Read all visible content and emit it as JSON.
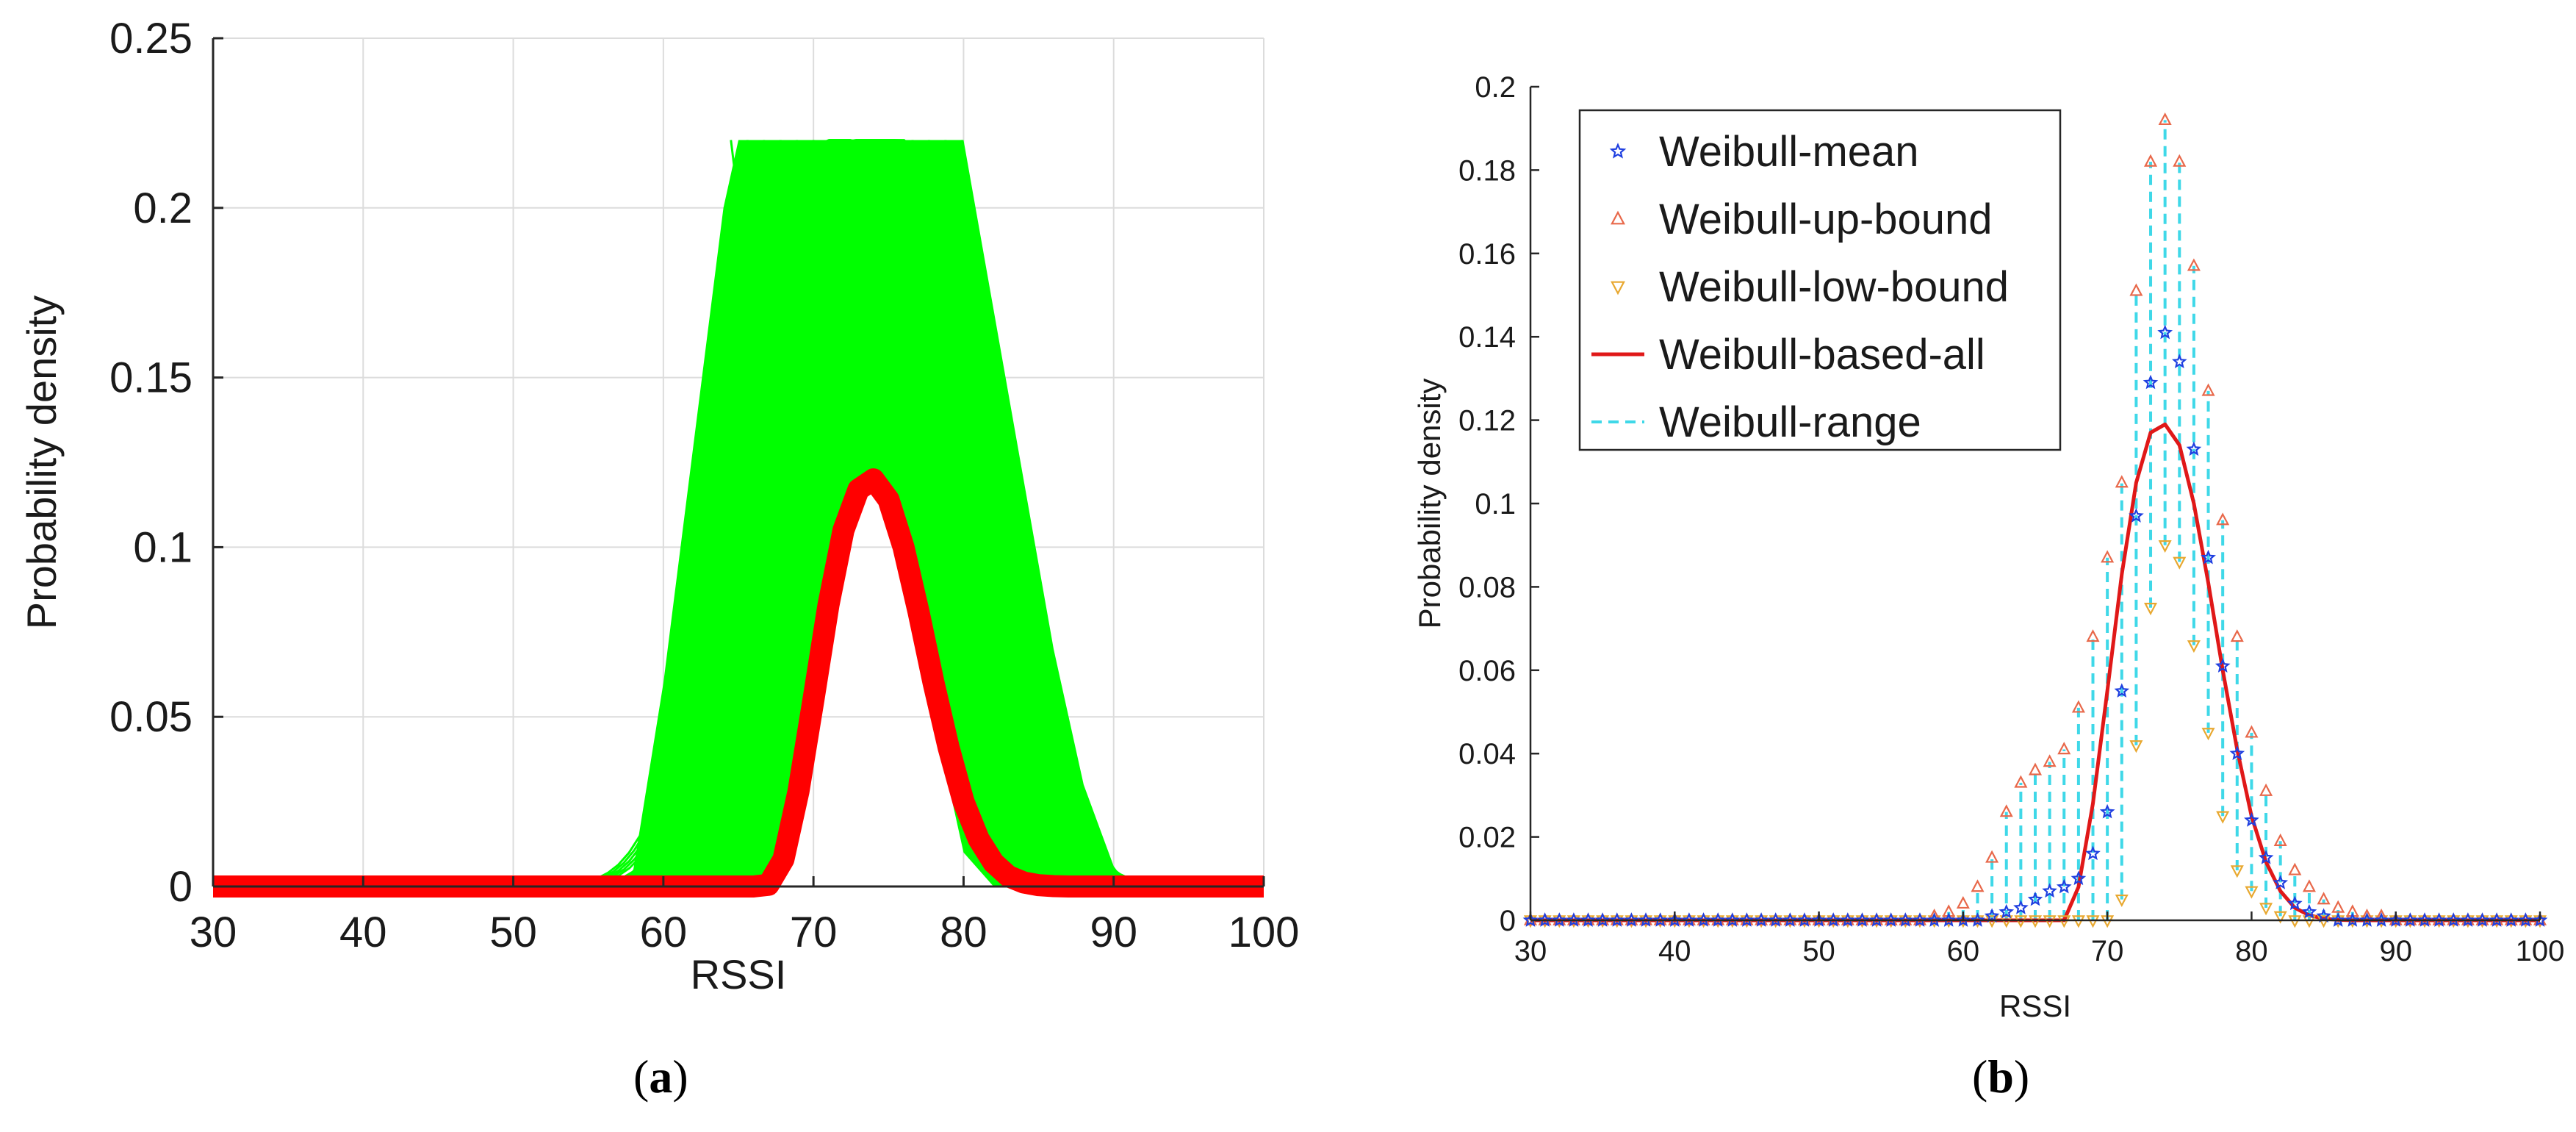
{
  "figure": {
    "panel_a_caption": {
      "open": "(",
      "letter": "a",
      "close": ")"
    },
    "panel_b_caption": {
      "open": "(",
      "letter": "b",
      "close": ")"
    }
  },
  "chart_data": [
    {
      "type": "line",
      "panel": "a",
      "xlabel": "RSSI",
      "ylabel": "Probability density",
      "xlim": [
        30,
        100
      ],
      "ylim": [
        0,
        0.25
      ],
      "xticks": [
        "30",
        "40",
        "50",
        "60",
        "70",
        "80",
        "90",
        "100"
      ],
      "yticks": [
        "0",
        "0.05",
        "0.1",
        "0.15",
        "0.2",
        "0.25"
      ],
      "grid": true,
      "colors": {
        "ensemble": "#00ff00",
        "fit": "#ff0000"
      },
      "series": [
        {
          "role": "ensemble",
          "x": [
            30,
            57,
            58,
            60,
            62,
            64,
            65,
            66,
            68,
            70,
            72,
            74,
            76,
            78,
            80,
            82,
            84,
            86,
            88,
            90,
            91,
            100
          ],
          "upper": [
            0,
            0,
            0.005,
            0.06,
            0.13,
            0.2,
            0.22,
            0.22,
            0.22,
            0.22,
            0.22,
            0.22,
            0.22,
            0.22,
            0.22,
            0.17,
            0.12,
            0.07,
            0.03,
            0.006,
            0,
            0
          ],
          "lower": [
            0,
            0,
            0,
            0,
            0,
            0,
            0,
            0,
            0.005,
            0.05,
            0.1,
            0.12,
            0.1,
            0.05,
            0.01,
            0,
            0,
            0,
            0,
            0,
            0,
            0
          ]
        },
        {
          "role": "fit",
          "x": [
            30,
            66,
            67,
            68,
            69,
            70,
            71,
            72,
            73,
            74,
            75,
            76,
            77,
            78,
            79,
            80,
            81,
            82,
            83,
            84,
            85,
            86,
            87,
            100
          ],
          "y": [
            0,
            0,
            0.0005,
            0.008,
            0.028,
            0.055,
            0.083,
            0.105,
            0.117,
            0.12,
            0.114,
            0.1,
            0.081,
            0.06,
            0.041,
            0.025,
            0.014,
            0.007,
            0.003,
            0.0012,
            0.0004,
            0.0001,
            0,
            0
          ]
        }
      ]
    },
    {
      "type": "line",
      "panel": "b",
      "xlabel": "RSSI",
      "ylabel": "Probability density",
      "xlim": [
        30,
        100
      ],
      "ylim": [
        0,
        0.2
      ],
      "xticks": [
        "30",
        "40",
        "50",
        "60",
        "70",
        "80",
        "90",
        "100"
      ],
      "yticks": [
        "0",
        "0.02",
        "0.04",
        "0.06",
        "0.08",
        "0.1",
        "0.12",
        "0.14",
        "0.16",
        "0.18",
        "0.2"
      ],
      "grid": false,
      "legend": "top-left",
      "legend_entries": [
        "Weibull-mean",
        "Weibull-up-bound",
        "Weibull-low-bound",
        "Weibull-based-all",
        "Weibull-range"
      ],
      "colors": {
        "mean": "#1f3fe0",
        "up": "#e8684a",
        "low": "#e8a830",
        "all": "#e01818",
        "range": "#3fd8e8"
      },
      "x": [
        30,
        31,
        32,
        33,
        34,
        35,
        36,
        37,
        38,
        39,
        40,
        41,
        42,
        43,
        44,
        45,
        46,
        47,
        48,
        49,
        50,
        51,
        52,
        53,
        54,
        55,
        56,
        57,
        58,
        59,
        60,
        61,
        62,
        63,
        64,
        65,
        66,
        67,
        68,
        69,
        70,
        71,
        72,
        73,
        74,
        75,
        76,
        77,
        78,
        79,
        80,
        81,
        82,
        83,
        84,
        85,
        86,
        87,
        88,
        89,
        90,
        91,
        92,
        93,
        94,
        95,
        96,
        97,
        98,
        99,
        100
      ],
      "series": [
        {
          "name": "Weibull-mean",
          "marker": "star",
          "y": [
            0,
            0,
            0,
            0,
            0,
            0,
            0,
            0,
            0,
            0,
            0,
            0,
            0,
            0,
            0,
            0,
            0,
            0,
            0,
            0,
            0,
            0,
            0,
            0,
            0,
            0,
            0,
            0,
            0,
            0,
            0,
            0,
            0.001,
            0.002,
            0.003,
            0.005,
            0.007,
            0.008,
            0.01,
            0.016,
            0.026,
            0.055,
            0.097,
            0.129,
            0.141,
            0.134,
            0.113,
            0.087,
            0.061,
            0.04,
            0.024,
            0.015,
            0.009,
            0.004,
            0.002,
            0.001,
            0,
            0,
            0,
            0,
            0,
            0,
            0,
            0,
            0,
            0,
            0,
            0,
            0,
            0,
            0
          ]
        },
        {
          "name": "Weibull-up-bound",
          "marker": "triangle-up",
          "y": [
            0,
            0,
            0,
            0,
            0,
            0,
            0,
            0,
            0,
            0,
            0,
            0,
            0,
            0,
            0,
            0,
            0,
            0,
            0,
            0,
            0,
            0,
            0,
            0,
            0,
            0,
            0,
            0,
            0.001,
            0.002,
            0.004,
            0.008,
            0.015,
            0.026,
            0.033,
            0.036,
            0.038,
            0.041,
            0.051,
            0.068,
            0.087,
            0.105,
            0.151,
            0.182,
            0.192,
            0.182,
            0.157,
            0.127,
            0.096,
            0.068,
            0.045,
            0.031,
            0.019,
            0.012,
            0.008,
            0.005,
            0.003,
            0.002,
            0.001,
            0.001,
            0,
            0,
            0,
            0,
            0,
            0,
            0,
            0,
            0,
            0,
            0
          ]
        },
        {
          "name": "Weibull-low-bound",
          "marker": "triangle-down",
          "y": [
            0,
            0,
            0,
            0,
            0,
            0,
            0,
            0,
            0,
            0,
            0,
            0,
            0,
            0,
            0,
            0,
            0,
            0,
            0,
            0,
            0,
            0,
            0,
            0,
            0,
            0,
            0,
            0,
            0,
            0,
            0,
            0,
            0,
            0,
            0,
            0,
            0,
            0,
            0,
            0,
            0,
            0.005,
            0.042,
            0.075,
            0.09,
            0.086,
            0.066,
            0.045,
            0.025,
            0.012,
            0.007,
            0.003,
            0.001,
            0,
            0,
            0,
            0,
            0,
            0,
            0,
            0,
            0,
            0,
            0,
            0,
            0,
            0,
            0,
            0,
            0,
            0
          ]
        },
        {
          "name": "Weibull-based-all",
          "marker": "line",
          "x": [
            30,
            67,
            68,
            69,
            70,
            71,
            72,
            73,
            74,
            75,
            76,
            77,
            78,
            79,
            80,
            81,
            82,
            83,
            84,
            85,
            86,
            87,
            100
          ],
          "y": [
            0,
            0,
            0.008,
            0.028,
            0.055,
            0.083,
            0.105,
            0.117,
            0.119,
            0.114,
            0.1,
            0.081,
            0.06,
            0.041,
            0.025,
            0.014,
            0.007,
            0.003,
            0.0012,
            0.0004,
            0.0001,
            0,
            0
          ]
        },
        {
          "name": "Weibull-range",
          "marker": "dashed-vertical"
        }
      ]
    }
  ]
}
